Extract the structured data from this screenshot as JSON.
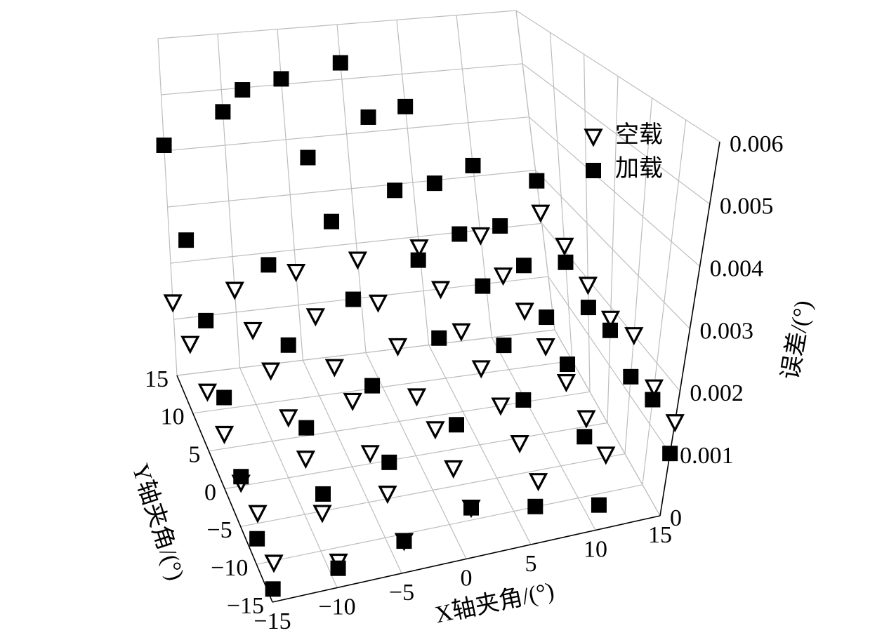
{
  "chart_data": {
    "type": "scatter3d",
    "xlabel": "X轴夹角/(°)",
    "ylabel": "Y轴夹角/(°)",
    "zlabel": "误差/(°)",
    "xlim": [
      -15,
      15
    ],
    "ylim": [
      -15,
      15
    ],
    "zlim": [
      0,
      0.006
    ],
    "xticks": [
      {
        "value": -15,
        "label": "−15"
      },
      {
        "value": -10,
        "label": "−10"
      },
      {
        "value": -5,
        "label": "−5"
      },
      0,
      5,
      10,
      15
    ],
    "yticks": [
      {
        "value": -15,
        "label": "−15"
      },
      {
        "value": -10,
        "label": "−10"
      },
      {
        "value": -5,
        "label": "−5"
      },
      0,
      5,
      10,
      15
    ],
    "zticks": [
      0,
      0.001,
      0.002,
      0.003,
      0.004,
      0.005,
      0.006
    ],
    "grid": true,
    "series": [
      {
        "name": "空载",
        "marker": "triangle-down",
        "color": "#000000",
        "x": [
          -15,
          -10,
          -5,
          0,
          5,
          10,
          15,
          -15,
          -10,
          -5,
          0,
          5,
          10,
          15,
          -15,
          -10,
          -5,
          0,
          5,
          10,
          15,
          -15,
          -10,
          -5,
          0,
          5,
          10,
          15,
          -15,
          -10,
          -5,
          0,
          5,
          10,
          15,
          -15,
          -10,
          -5,
          0,
          5,
          10,
          15,
          -15,
          -10,
          -5,
          0,
          5,
          10,
          15
        ],
        "y": [
          -15,
          -15,
          -15,
          -15,
          -15,
          -15,
          -15,
          -10,
          -10,
          -10,
          -10,
          -10,
          -10,
          -10,
          -5,
          -5,
          -5,
          -5,
          -5,
          -5,
          -5,
          0,
          0,
          0,
          0,
          0,
          0,
          0,
          5,
          5,
          5,
          5,
          5,
          5,
          5,
          10,
          10,
          10,
          10,
          10,
          10,
          10,
          15,
          15,
          15,
          15,
          15,
          15,
          15
        ],
        "z": [
          0.0006,
          0.0004,
          0.0005,
          0.0008,
          0.001,
          0.0012,
          0.0015,
          0.0008,
          0.0006,
          0.0007,
          0.0009,
          0.0011,
          0.0013,
          0.0016,
          0.0007,
          0.0009,
          0.0008,
          0.001,
          0.0012,
          0.0014,
          0.002,
          0.0009,
          0.001,
          0.0011,
          0.001,
          0.0013,
          0.0015,
          0.0018,
          0.001,
          0.0012,
          0.0011,
          0.0013,
          0.0014,
          0.0016,
          0.0019,
          0.0012,
          0.0013,
          0.0014,
          0.0015,
          0.0016,
          0.0017,
          0.0021,
          0.0013,
          0.0014,
          0.0016,
          0.0017,
          0.0018,
          0.0019,
          0.0022
        ]
      },
      {
        "name": "加载",
        "marker": "square",
        "color": "#000000",
        "x": [
          -15,
          -10,
          -5,
          0,
          5,
          10,
          15,
          -15,
          -10,
          -5,
          0,
          5,
          10,
          15,
          -15,
          -10,
          -5,
          0,
          5,
          10,
          15,
          -15,
          -10,
          -5,
          0,
          5,
          10,
          15,
          -15,
          -10,
          -5,
          0,
          5,
          10,
          15,
          -15,
          -10,
          -5,
          0,
          5,
          10,
          15,
          -15,
          -10,
          -5,
          0,
          5,
          10,
          15
        ],
        "y": [
          -15,
          -15,
          -15,
          -15,
          -15,
          -15,
          -15,
          -10,
          -10,
          -10,
          -10,
          -10,
          -10,
          -10,
          -5,
          -5,
          -5,
          -5,
          -5,
          -5,
          -5,
          0,
          0,
          0,
          0,
          0,
          0,
          0,
          5,
          5,
          5,
          5,
          5,
          5,
          5,
          10,
          10,
          10,
          10,
          10,
          10,
          10,
          15,
          15,
          15,
          15,
          15,
          15,
          15
        ],
        "z": [
          0.0002,
          0.0003,
          0.0005,
          0.0008,
          0.0006,
          0.0004,
          0.001,
          0.0004,
          0.0009,
          0.0012,
          0.0016,
          0.0018,
          0.001,
          0.0014,
          0.0008,
          0.0014,
          0.0019,
          0.0025,
          0.0022,
          0.0017,
          0.0013,
          0.0015,
          0.0022,
          0.0028,
          0.0033,
          0.0027,
          0.002,
          0.0016,
          0.0022,
          0.003,
          0.0036,
          0.004,
          0.0031,
          0.0024,
          0.0015,
          0.003,
          0.0055,
          0.0042,
          0.0048,
          0.0035,
          0.0026,
          0.0018,
          0.0041,
          0.0046,
          0.0051,
          0.0053,
          0.0044,
          0.0032,
          0.0028
        ]
      }
    ]
  }
}
